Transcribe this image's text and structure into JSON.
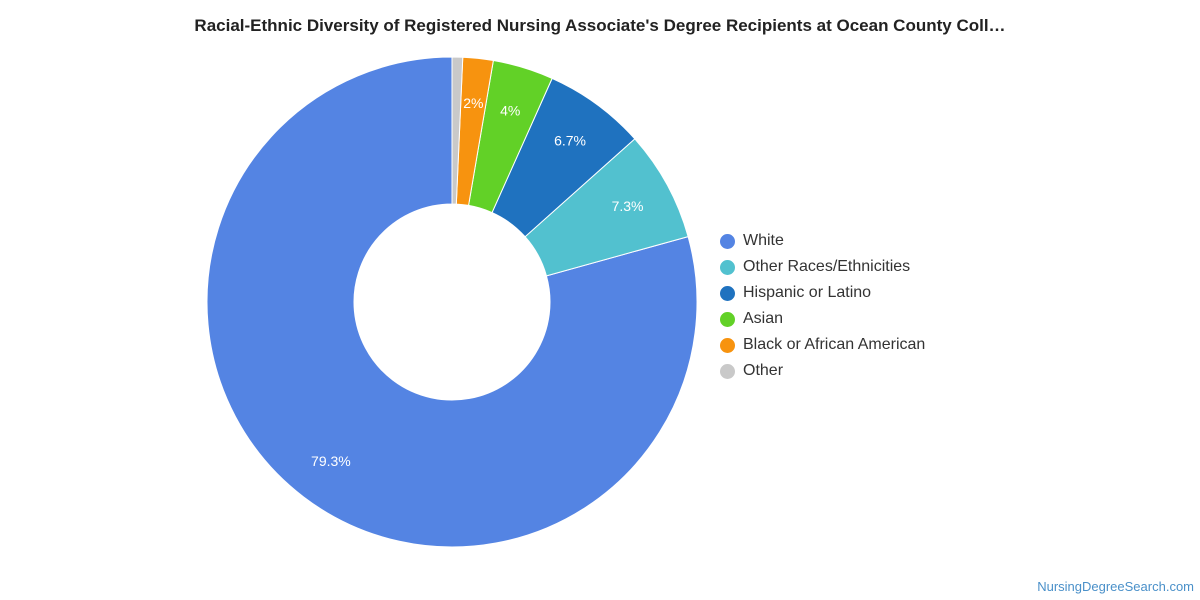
{
  "chart_data": {
    "type": "pie",
    "title": "Racial-Ethnic Diversity of Registered Nursing Associate's Degree Recipients at Ocean County Coll…",
    "donut": true,
    "legend_position": "right",
    "slices": [
      {
        "label": "White",
        "value": 79.3,
        "value_label": "79.3%",
        "color": "#5484e3"
      },
      {
        "label": "Other Races/Ethnicities",
        "value": 7.3,
        "value_label": "7.3%",
        "color": "#52c1cf"
      },
      {
        "label": "Hispanic or Latino",
        "value": 6.7,
        "value_label": "6.7%",
        "color": "#1f72bf"
      },
      {
        "label": "Asian",
        "value": 4.0,
        "value_label": "4%",
        "color": "#62d127"
      },
      {
        "label": "Black or African American",
        "value": 2.0,
        "value_label": "2%",
        "color": "#f7930f"
      },
      {
        "label": "Other",
        "value": 0.7,
        "value_label": "",
        "color": "#c9c9c9"
      }
    ]
  },
  "credit": "NursingDegreeSearch.com"
}
